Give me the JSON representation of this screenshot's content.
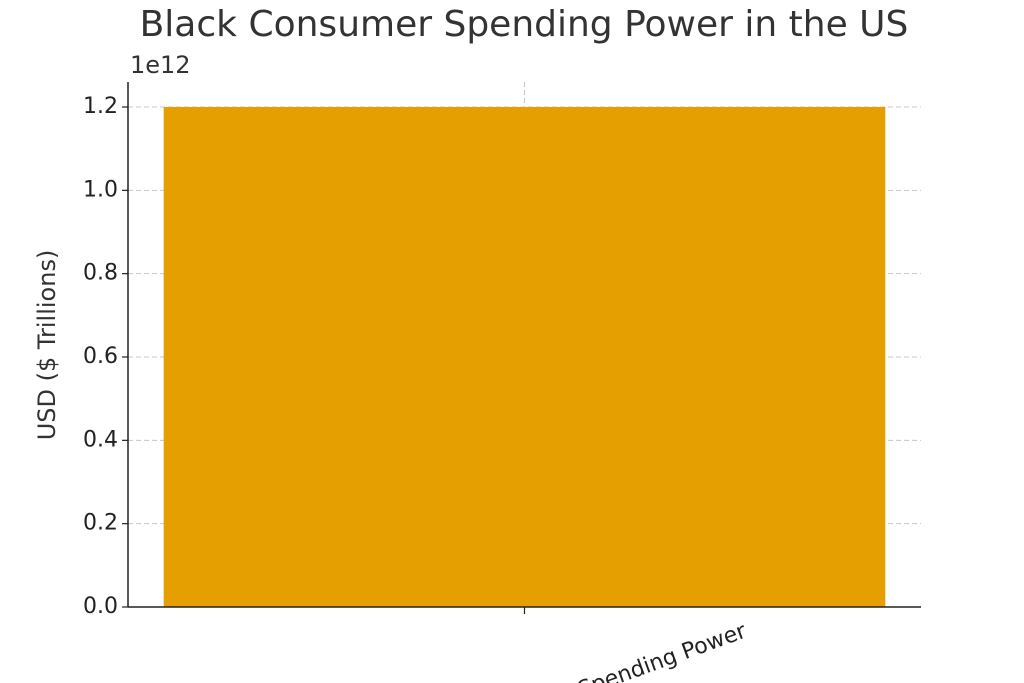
{
  "chart_data": {
    "type": "bar",
    "title": "Black Consumer Spending Power in the US",
    "y_label": "USD ($ Trillions)",
    "y_offset_label": "1e12",
    "categories": [
      "Spending Power"
    ],
    "values": [
      1200000000000
    ],
    "color": "#e69f00",
    "ylim": [
      0,
      1260000000000
    ],
    "yticks": [
      {
        "value": 0,
        "label": "0.0"
      },
      {
        "value": 200000000000,
        "label": "0.2"
      },
      {
        "value": 400000000000,
        "label": "0.4"
      },
      {
        "value": 600000000000,
        "label": "0.6"
      },
      {
        "value": 800000000000,
        "label": "0.8"
      },
      {
        "value": 1000000000000,
        "label": "1.0"
      },
      {
        "value": 1200000000000,
        "label": "1.2"
      }
    ],
    "grid": true
  }
}
